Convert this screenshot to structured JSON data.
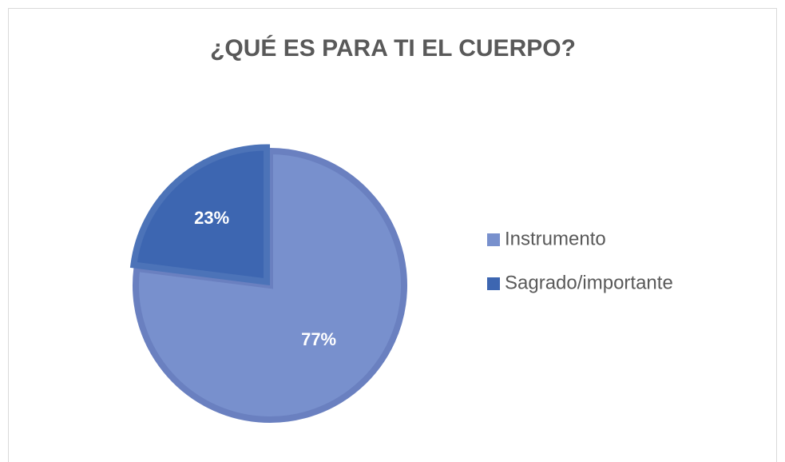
{
  "chart_data": {
    "type": "pie",
    "title": "¿QUÉ ES PARA TI EL CUERPO?",
    "categories": [
      "Instrumento",
      "Sagrado/importante"
    ],
    "values": [
      77,
      23
    ],
    "value_labels": [
      "77%",
      "23%"
    ],
    "colors": [
      "#7890cd",
      "#3d66b1"
    ],
    "legend": "right"
  }
}
